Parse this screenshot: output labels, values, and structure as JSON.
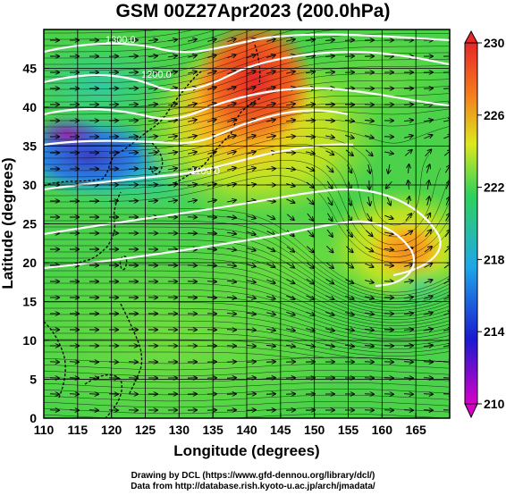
{
  "title": "GSM 00Z27Apr2023 (200.0hPa)",
  "credits": {
    "line1": "Drawing by DCL (https://www.gfd-dennou.org/library/dcl/)",
    "line2": "Data from http://database.rish.kyoto-u.ac.jp/arch/jmadata/"
  },
  "chart_data": {
    "type": "heatmap",
    "title": "GSM 00Z27Apr2023 (200.0hPa)",
    "xlabel": "Longitude (degrees)",
    "ylabel": "Latitude  (degrees)",
    "xlim": [
      110,
      170
    ],
    "ylim": [
      0,
      50
    ],
    "x_ticks": [
      110,
      115,
      120,
      125,
      130,
      135,
      140,
      145,
      150,
      155,
      160,
      165
    ],
    "y_ticks": [
      0,
      5,
      10,
      15,
      20,
      25,
      30,
      35,
      40,
      45
    ],
    "grid": true,
    "colorbar": {
      "min": 210,
      "max": 230,
      "ticks": [
        210,
        214,
        218,
        222,
        226,
        230
      ],
      "colors": [
        "#d900c8",
        "#1a1ad0",
        "#1fa7e8",
        "#2fd25a",
        "#dce81e",
        "#f57a1e",
        "#e62828"
      ]
    },
    "contour_labels": [
      "1300.0",
      "1200.0",
      "1100.0"
    ],
    "overlays": [
      "streamlines",
      "wind-vectors",
      "coastlines",
      "height-contours"
    ]
  }
}
